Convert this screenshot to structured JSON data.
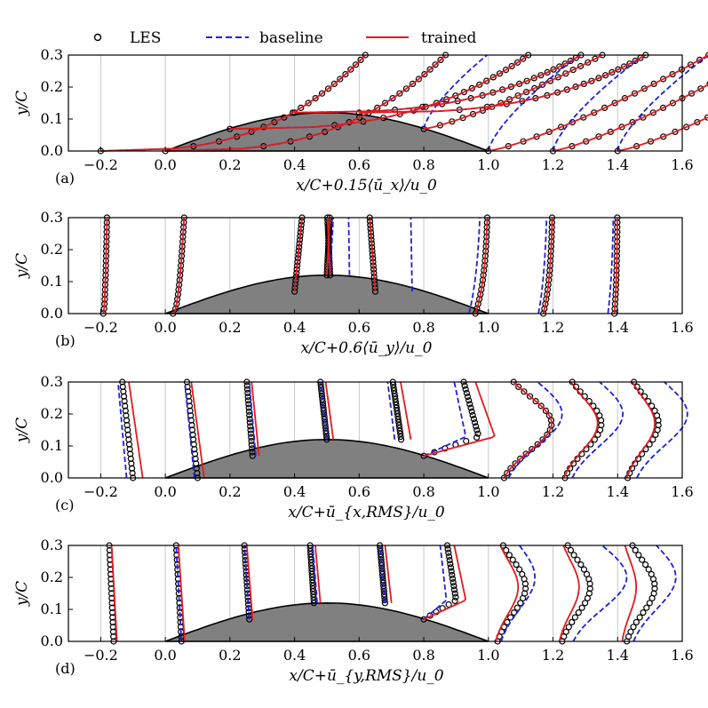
{
  "legend": [
    {
      "label": "LES",
      "style": "circles",
      "color": "#000000"
    },
    {
      "label": "baseline",
      "style": "dashed",
      "color": "#1f1fe0"
    },
    {
      "label": "trained",
      "style": "solid",
      "color": "#e41a1c"
    }
  ],
  "colors": {
    "bump": "#808080",
    "grid": "#c8c8c8",
    "les": "#000000",
    "baseline": "#1f1fe0",
    "trained": "#e41a1c"
  },
  "chart_data": [
    {
      "type": "line",
      "panel_label": "(a)",
      "xlabel": "x/C+0.15⟨ū_x⟩/u_0",
      "ylabel": "y/C",
      "xlim": [
        -0.3,
        1.6
      ],
      "ylim": [
        0.0,
        0.3
      ],
      "xticks": [
        -0.2,
        0.0,
        0.2,
        0.4,
        0.6,
        0.8,
        1.0,
        1.2,
        1.4,
        1.6
      ],
      "yticks": [
        0.0,
        0.1,
        0.2,
        0.3
      ],
      "scale": 0.15,
      "stations": [
        -0.2,
        0.0,
        0.2,
        0.4,
        0.6,
        0.8,
        1.0,
        1.2,
        1.4
      ],
      "bump": {
        "start": 0.0,
        "end": 1.0,
        "height": 0.12
      },
      "series": [
        {
          "name": "LES",
          "profiles": [
            {
              "x0": -0.2,
              "base": 0.0,
              "scale": 0.85,
              "kind": "mean"
            },
            {
              "x0": 0.0,
              "base": 0.0,
              "scale": 0.9,
              "kind": "mean"
            },
            {
              "x0": 0.2,
              "base": 0.069,
              "scale": 1.05,
              "kind": "mean"
            },
            {
              "x0": 0.4,
              "base": 0.12,
              "scale": 1.1,
              "kind": "mean"
            },
            {
              "x0": 0.6,
              "base": 0.12,
              "scale": 1.1,
              "kind": "mean"
            },
            {
              "x0": 0.8,
              "base": 0.069,
              "scale": 0.95,
              "kind": "wake"
            },
            {
              "x0": 1.0,
              "base": 0.0,
              "scale": 0.95,
              "kind": "wake"
            },
            {
              "x0": 1.2,
              "base": 0.0,
              "scale": 0.9,
              "kind": "wake"
            },
            {
              "x0": 1.4,
              "base": 0.0,
              "scale": 0.9,
              "kind": "wake"
            }
          ]
        },
        {
          "name": "baseline",
          "profiles": [
            {
              "x0": -0.2,
              "base": 0.0,
              "scale": 0.85,
              "kind": "mean"
            },
            {
              "x0": 0.0,
              "base": 0.0,
              "scale": 0.9,
              "kind": "mean"
            },
            {
              "x0": 0.2,
              "base": 0.069,
              "scale": 1.05,
              "kind": "mean"
            },
            {
              "x0": 0.4,
              "base": 0.12,
              "scale": 1.1,
              "kind": "mean"
            },
            {
              "x0": 0.6,
              "base": 0.12,
              "scale": 1.1,
              "kind": "mean"
            },
            {
              "x0": 0.8,
              "base": 0.069,
              "scale": 0.95,
              "kind": "wakeB"
            },
            {
              "x0": 1.0,
              "base": 0.0,
              "scale": 0.95,
              "kind": "wakeB"
            },
            {
              "x0": 1.2,
              "base": 0.0,
              "scale": 0.95,
              "kind": "wakeB"
            },
            {
              "x0": 1.4,
              "base": 0.0,
              "scale": 0.95,
              "kind": "wakeB"
            }
          ]
        },
        {
          "name": "trained",
          "profiles": [
            {
              "x0": -0.2,
              "base": 0.0,
              "scale": 0.85,
              "kind": "mean"
            },
            {
              "x0": 0.0,
              "base": 0.0,
              "scale": 0.9,
              "kind": "mean"
            },
            {
              "x0": 0.2,
              "base": 0.069,
              "scale": 1.05,
              "kind": "mean"
            },
            {
              "x0": 0.4,
              "base": 0.12,
              "scale": 1.1,
              "kind": "mean"
            },
            {
              "x0": 0.6,
              "base": 0.12,
              "scale": 1.1,
              "kind": "mean"
            },
            {
              "x0": 0.8,
              "base": 0.069,
              "scale": 0.95,
              "kind": "wake"
            },
            {
              "x0": 1.0,
              "base": 0.0,
              "scale": 0.95,
              "kind": "wake"
            },
            {
              "x0": 1.2,
              "base": 0.0,
              "scale": 0.9,
              "kind": "wake"
            },
            {
              "x0": 1.4,
              "base": 0.0,
              "scale": 0.9,
              "kind": "wake"
            }
          ]
        }
      ]
    },
    {
      "type": "line",
      "panel_label": "(b)",
      "xlabel": "x/C+0.6⟨ū_y⟩/u_0",
      "ylabel": "y/C",
      "xlim": [
        -0.3,
        1.6
      ],
      "ylim": [
        0.0,
        0.3
      ],
      "xticks": [
        -0.2,
        0.0,
        0.2,
        0.4,
        0.6,
        0.8,
        1.0,
        1.2,
        1.4,
        1.6
      ],
      "yticks": [
        0.0,
        0.1,
        0.2,
        0.3
      ],
      "scale": 0.6,
      "stations": [
        -0.2,
        0.0,
        0.2,
        0.4,
        0.6,
        0.8,
        1.0,
        1.2,
        1.4
      ],
      "bump": {
        "start": 0.0,
        "end": 1.0,
        "height": 0.12
      },
      "series": [
        {
          "name": "LES",
          "profiles": [
            {
              "x0": -0.2,
              "base": 0.0,
              "scale": 0.02,
              "kind": "vpos"
            },
            {
              "x0": 0.0,
              "base": 0.0,
              "scale": 0.06,
              "kind": "vpos"
            },
            {
              "x0": 0.2,
              "base": 0.069,
              "scale": 0.2,
              "kind": "vup"
            },
            {
              "x0": 0.4,
              "base": 0.12,
              "scale": 0.1,
              "kind": "vup"
            },
            {
              "x0": 0.6,
              "base": 0.12,
              "scale": -0.09,
              "kind": "vup"
            },
            {
              "x0": 0.8,
              "base": 0.069,
              "scale": -0.15,
              "kind": "vup"
            },
            {
              "x0": 1.0,
              "base": 0.0,
              "scale": -0.04,
              "kind": "vwake"
            },
            {
              "x0": 1.2,
              "base": 0.0,
              "scale": -0.03,
              "kind": "vwake"
            },
            {
              "x0": 1.4,
              "base": 0.0,
              "scale": -0.01,
              "kind": "vwake"
            }
          ]
        },
        {
          "name": "baseline",
          "profiles": [
            {
              "x0": -0.2,
              "base": 0.0,
              "scale": 0.02,
              "kind": "vpos"
            },
            {
              "x0": 0.0,
              "base": 0.0,
              "scale": 0.06,
              "kind": "vpos"
            },
            {
              "x0": 0.2,
              "base": 0.069,
              "scale": 0.2,
              "kind": "vup"
            },
            {
              "x0": 0.4,
              "base": 0.12,
              "scale": 0.11,
              "kind": "vup"
            },
            {
              "x0": 0.6,
              "base": 0.12,
              "scale": -0.05,
              "kind": "vupB"
            },
            {
              "x0": 0.8,
              "base": 0.069,
              "scale": -0.06,
              "kind": "vupB"
            },
            {
              "x0": 1.0,
              "base": 0.0,
              "scale": -0.04,
              "kind": "vwakeB"
            },
            {
              "x0": 1.2,
              "base": 0.0,
              "scale": -0.03,
              "kind": "vwakeB"
            },
            {
              "x0": 1.4,
              "base": 0.0,
              "scale": -0.02,
              "kind": "vwakeB"
            }
          ]
        },
        {
          "name": "trained",
          "profiles": [
            {
              "x0": -0.2,
              "base": 0.0,
              "scale": 0.02,
              "kind": "vpos"
            },
            {
              "x0": 0.0,
              "base": 0.0,
              "scale": 0.06,
              "kind": "vpos"
            },
            {
              "x0": 0.2,
              "base": 0.069,
              "scale": 0.2,
              "kind": "vup"
            },
            {
              "x0": 0.4,
              "base": 0.12,
              "scale": 0.1,
              "kind": "vup"
            },
            {
              "x0": 0.6,
              "base": 0.12,
              "scale": -0.09,
              "kind": "vup"
            },
            {
              "x0": 0.8,
              "base": 0.069,
              "scale": -0.15,
              "kind": "vup"
            },
            {
              "x0": 1.0,
              "base": 0.0,
              "scale": -0.04,
              "kind": "vwake"
            },
            {
              "x0": 1.2,
              "base": 0.0,
              "scale": -0.03,
              "kind": "vwake"
            },
            {
              "x0": 1.4,
              "base": 0.0,
              "scale": -0.01,
              "kind": "vwake"
            }
          ]
        }
      ]
    },
    {
      "type": "line",
      "panel_label": "(c)",
      "xlabel": "x/C+ū_{x,RMS}/u_0",
      "ylabel": "y/C",
      "xlim": [
        -0.3,
        1.6
      ],
      "ylim": [
        0.0,
        0.3
      ],
      "xticks": [
        -0.2,
        0.0,
        0.2,
        0.4,
        0.6,
        0.8,
        1.0,
        1.2,
        1.4,
        1.6
      ],
      "yticks": [
        0.0,
        0.1,
        0.2,
        0.3
      ],
      "scale": 1.0,
      "stations": [
        -0.2,
        0.0,
        0.2,
        0.4,
        0.6,
        0.8,
        1.0,
        1.2,
        1.4
      ],
      "bump": {
        "start": 0.0,
        "end": 1.0,
        "height": 0.12
      },
      "series": [
        {
          "name": "LES",
          "profiles": [
            {
              "x0": -0.2,
              "base": 0.0,
              "scale": 0.1,
              "kind": "rms"
            },
            {
              "x0": 0.0,
              "base": 0.0,
              "scale": 0.1,
              "kind": "rms"
            },
            {
              "x0": 0.2,
              "base": 0.069,
              "scale": 0.07,
              "kind": "rms"
            },
            {
              "x0": 0.4,
              "base": 0.12,
              "scale": 0.1,
              "kind": "rms"
            },
            {
              "x0": 0.6,
              "base": 0.12,
              "scale": 0.13,
              "kind": "rms"
            },
            {
              "x0": 0.8,
              "base": 0.069,
              "scale": 0.17,
              "kind": "rmsPeak"
            },
            {
              "x0": 1.0,
              "base": 0.0,
              "scale": 0.17,
              "kind": "rmsWake"
            },
            {
              "x0": 1.2,
              "base": 0.0,
              "scale": 0.13,
              "kind": "rmsWake"
            },
            {
              "x0": 1.4,
              "base": 0.0,
              "scale": 0.11,
              "kind": "rmsWake"
            }
          ]
        },
        {
          "name": "baseline",
          "profiles": [
            {
              "x0": -0.2,
              "base": 0.0,
              "scale": 0.08,
              "kind": "rms"
            },
            {
              "x0": 0.0,
              "base": 0.0,
              "scale": 0.09,
              "kind": "rms"
            },
            {
              "x0": 0.2,
              "base": 0.069,
              "scale": 0.08,
              "kind": "rms"
            },
            {
              "x0": 0.4,
              "base": 0.12,
              "scale": 0.1,
              "kind": "rms"
            },
            {
              "x0": 0.6,
              "base": 0.12,
              "scale": 0.11,
              "kind": "rms"
            },
            {
              "x0": 0.8,
              "base": 0.069,
              "scale": 0.13,
              "kind": "rmsPeak"
            },
            {
              "x0": 1.0,
              "base": 0.0,
              "scale": 0.19,
              "kind": "rmsWakeB"
            },
            {
              "x0": 1.2,
              "base": 0.0,
              "scale": 0.18,
              "kind": "rmsWakeB"
            },
            {
              "x0": 1.4,
              "base": 0.0,
              "scale": 0.18,
              "kind": "rmsWakeB"
            }
          ]
        },
        {
          "name": "trained",
          "profiles": [
            {
              "x0": -0.2,
              "base": 0.0,
              "scale": 0.13,
              "kind": "rms"
            },
            {
              "x0": 0.0,
              "base": 0.0,
              "scale": 0.12,
              "kind": "rms"
            },
            {
              "x0": 0.2,
              "base": 0.069,
              "scale": 0.09,
              "kind": "rms"
            },
            {
              "x0": 0.4,
              "base": 0.12,
              "scale": 0.12,
              "kind": "rms"
            },
            {
              "x0": 0.6,
              "base": 0.12,
              "scale": 0.16,
              "kind": "rms"
            },
            {
              "x0": 0.8,
              "base": 0.069,
              "scale": 0.22,
              "kind": "rmsPeak"
            },
            {
              "x0": 1.0,
              "base": 0.0,
              "scale": 0.17,
              "kind": "rmsWake"
            },
            {
              "x0": 1.2,
              "base": 0.0,
              "scale": 0.12,
              "kind": "rmsWake"
            },
            {
              "x0": 1.4,
              "base": 0.0,
              "scale": 0.1,
              "kind": "rmsWake"
            }
          ]
        }
      ]
    },
    {
      "type": "line",
      "panel_label": "(d)",
      "xlabel": "x/C+ū_{y,RMS}/u_0",
      "ylabel": "y/C",
      "xlim": [
        -0.3,
        1.6
      ],
      "ylim": [
        0.0,
        0.3
      ],
      "xticks": [
        -0.2,
        0.0,
        0.2,
        0.4,
        0.6,
        0.8,
        1.0,
        1.2,
        1.4,
        1.6
      ],
      "yticks": [
        0.0,
        0.1,
        0.2,
        0.3
      ],
      "scale": 1.0,
      "stations": [
        -0.2,
        0.0,
        0.2,
        0.4,
        0.6,
        0.8,
        1.0,
        1.2,
        1.4
      ],
      "bump": {
        "start": 0.0,
        "end": 1.0,
        "height": 0.12
      },
      "series": [
        {
          "name": "LES",
          "profiles": [
            {
              "x0": -0.2,
              "base": 0.0,
              "scale": 0.04,
              "kind": "rms"
            },
            {
              "x0": 0.0,
              "base": 0.0,
              "scale": 0.05,
              "kind": "rms"
            },
            {
              "x0": 0.2,
              "base": 0.069,
              "scale": 0.06,
              "kind": "rms"
            },
            {
              "x0": 0.4,
              "base": 0.12,
              "scale": 0.06,
              "kind": "rms"
            },
            {
              "x0": 0.6,
              "base": 0.12,
              "scale": 0.08,
              "kind": "rms"
            },
            {
              "x0": 0.8,
              "base": 0.069,
              "scale": 0.1,
              "kind": "rmsPeak"
            },
            {
              "x0": 1.0,
              "base": 0.0,
              "scale": 0.1,
              "kind": "rmsWake"
            },
            {
              "x0": 1.2,
              "base": 0.0,
              "scale": 0.1,
              "kind": "rmsWake"
            },
            {
              "x0": 1.4,
              "base": 0.0,
              "scale": 0.1,
              "kind": "rmsWake"
            }
          ]
        },
        {
          "name": "baseline",
          "profiles": [
            {
              "x0": -0.2,
              "base": 0.0,
              "scale": 0.05,
              "kind": "rms"
            },
            {
              "x0": 0.0,
              "base": 0.0,
              "scale": 0.05,
              "kind": "rms"
            },
            {
              "x0": 0.2,
              "base": 0.069,
              "scale": 0.06,
              "kind": "rms"
            },
            {
              "x0": 0.4,
              "base": 0.12,
              "scale": 0.07,
              "kind": "rms"
            },
            {
              "x0": 0.6,
              "base": 0.12,
              "scale": 0.08,
              "kind": "rms"
            },
            {
              "x0": 0.8,
              "base": 0.069,
              "scale": 0.07,
              "kind": "rmsPeak"
            },
            {
              "x0": 1.0,
              "base": 0.0,
              "scale": 0.12,
              "kind": "rmsWakeB"
            },
            {
              "x0": 1.2,
              "base": 0.0,
              "scale": 0.19,
              "kind": "rmsWakeB"
            },
            {
              "x0": 1.4,
              "base": 0.0,
              "scale": 0.15,
              "kind": "rmsWakeB"
            }
          ]
        },
        {
          "name": "trained",
          "profiles": [
            {
              "x0": -0.2,
              "base": 0.0,
              "scale": 0.05,
              "kind": "rms"
            },
            {
              "x0": 0.0,
              "base": 0.0,
              "scale": 0.06,
              "kind": "rms"
            },
            {
              "x0": 0.2,
              "base": 0.069,
              "scale": 0.07,
              "kind": "rms"
            },
            {
              "x0": 0.4,
              "base": 0.12,
              "scale": 0.08,
              "kind": "rms"
            },
            {
              "x0": 0.6,
              "base": 0.12,
              "scale": 0.1,
              "kind": "rms"
            },
            {
              "x0": 0.8,
              "base": 0.069,
              "scale": 0.13,
              "kind": "rmsPeak"
            },
            {
              "x0": 1.0,
              "base": 0.0,
              "scale": 0.08,
              "kind": "rmsWake"
            },
            {
              "x0": 1.2,
              "base": 0.0,
              "scale": 0.07,
              "kind": "rmsWake"
            },
            {
              "x0": 1.4,
              "base": 0.0,
              "scale": 0.05,
              "kind": "rmsWake"
            }
          ]
        }
      ]
    }
  ]
}
